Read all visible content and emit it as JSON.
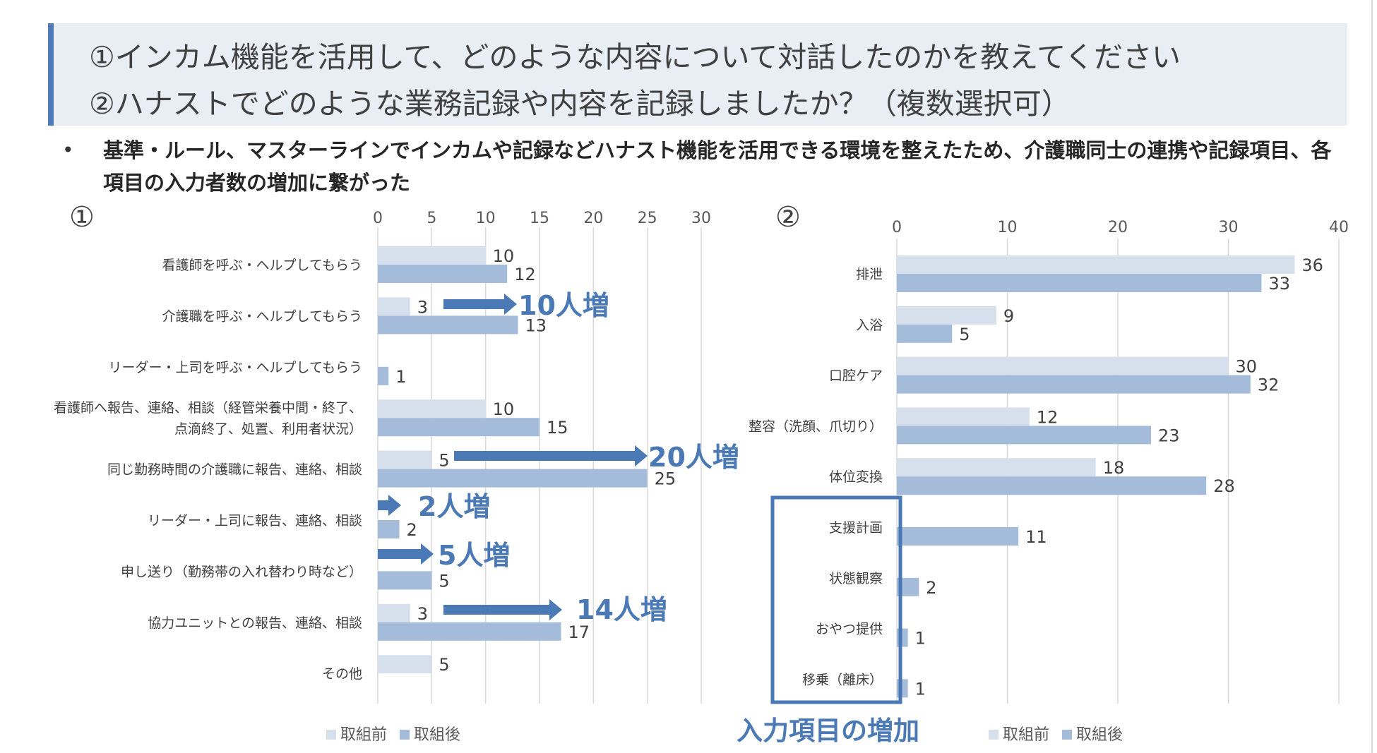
{
  "header": {
    "line1": "①インカム機能を活用して、どのような内容について対話したのかを教えてください",
    "line2": "②ハナストでどのような業務記録や内容を記録しましたか？（複数選択可）"
  },
  "bullet": {
    "dot": "•",
    "text": "基準・ルール、マスターラインでインカムや記録などハナスト機能を活用できる環境を整えたため、介護職同士の連携や記録項目、各項目の入力者数の増加に繋がった"
  },
  "chart1_number": "①",
  "chart2_number": "②",
  "colors": {
    "before": "#d6e0ed",
    "after": "#a4bcda",
    "arrow": "#4a79b5",
    "grid": "#d9d9d9",
    "box": "#4a79b5"
  },
  "chart_data": [
    {
      "type": "bar",
      "orientation": "horizontal",
      "title": "",
      "xlim": [
        0,
        30
      ],
      "ticks": [
        0,
        5,
        10,
        15,
        20,
        25,
        30
      ],
      "categories": [
        "看護師を呼ぶ・ヘルプしてもらう",
        "介護職を呼ぶ・ヘルプしてもらう",
        "リーダー・上司を呼ぶ・ヘルプしてもらう",
        [
          "看護師へ報告、連絡、相談（経管栄養中間・終了、",
          "点滴終了、処置、利用者状況）"
        ],
        "同じ勤務時間の介護職に報告、連絡、相談",
        "リーダー・上司に報告、連絡、相談",
        "申し送り（勤務帯の入れ替わり時など）",
        "協力ユニットとの報告、連絡、相談",
        "その他"
      ],
      "series": [
        {
          "name": "取組前",
          "values": [
            10,
            3,
            null,
            10,
            5,
            null,
            null,
            3,
            5
          ]
        },
        {
          "name": "取組後",
          "values": [
            12,
            13,
            1,
            15,
            25,
            2,
            5,
            17,
            null
          ]
        }
      ],
      "legend": [
        "取組前",
        "取組後"
      ],
      "annotations": [
        {
          "text": "10人増",
          "category_index": 1
        },
        {
          "text": "20人増",
          "category_index": 4
        },
        {
          "text": "2人増",
          "category_index": 5
        },
        {
          "text": "5人増",
          "category_index": 6
        },
        {
          "text": "14人増",
          "category_index": 7
        }
      ]
    },
    {
      "type": "bar",
      "orientation": "horizontal",
      "title": "",
      "xlim": [
        0,
        40
      ],
      "ticks": [
        0,
        10,
        20,
        30,
        40
      ],
      "categories": [
        "排泄",
        "入浴",
        "口腔ケア",
        "整容（洗顔、爪切り）",
        "体位変換",
        "支援計画",
        "状態観察",
        "おやつ提供",
        "移乗（離床）"
      ],
      "series": [
        {
          "name": "取組前",
          "values": [
            36,
            9,
            30,
            12,
            18,
            null,
            null,
            null,
            null
          ]
        },
        {
          "name": "取組後",
          "values": [
            33,
            5,
            32,
            23,
            28,
            11,
            2,
            1,
            1
          ]
        }
      ],
      "legend": [
        "取組前",
        "取組後"
      ],
      "highlight_label": "入力項目の増加"
    }
  ]
}
